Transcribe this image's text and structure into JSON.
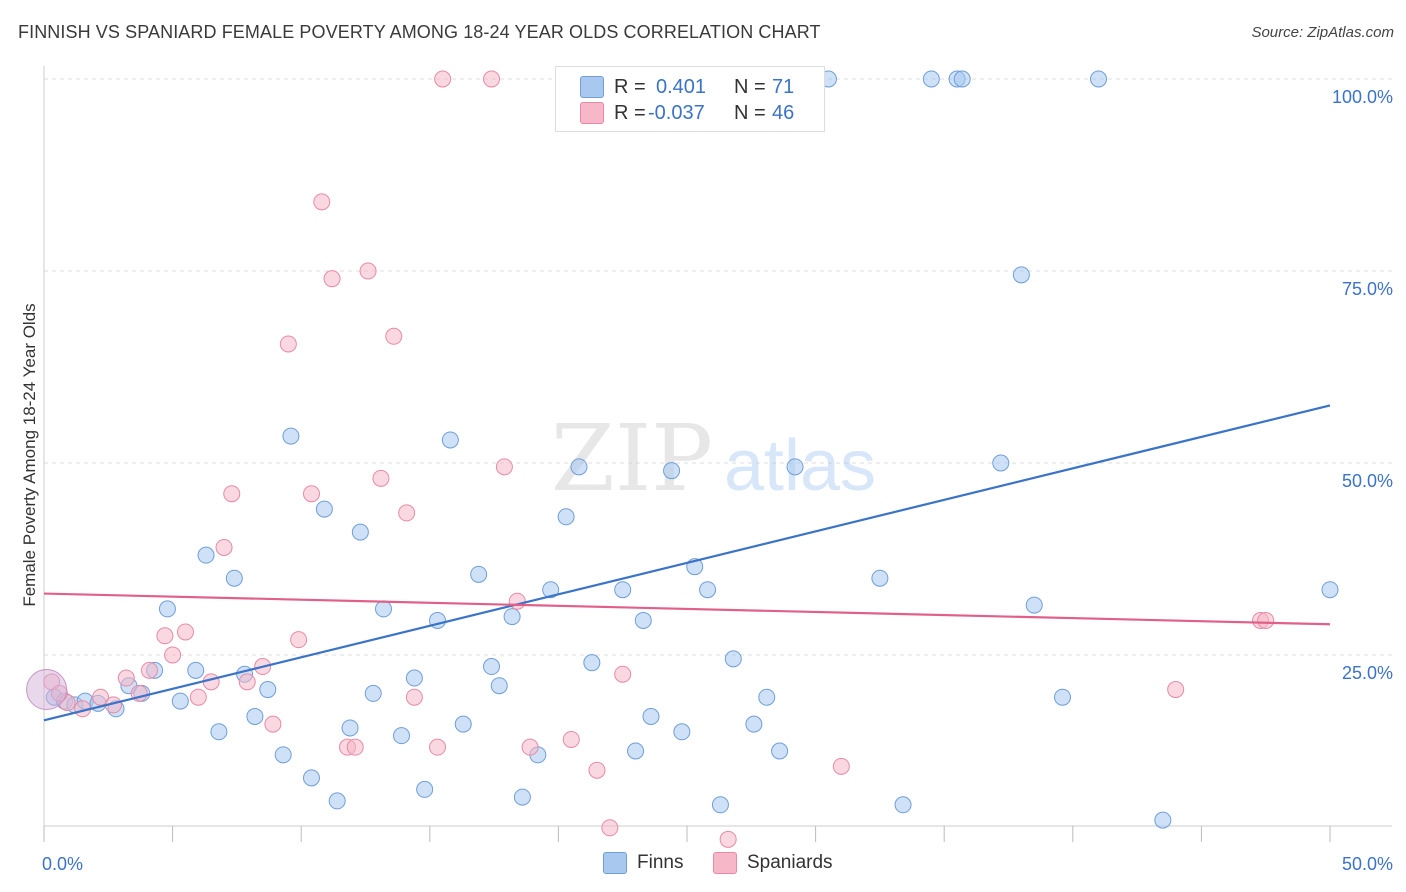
{
  "header": {
    "title": "FINNISH VS SPANIARD FEMALE POVERTY AMONG 18-24 YEAR OLDS CORRELATION CHART",
    "source": "Source: ZipAtlas.com"
  },
  "watermark": {
    "zip": "ZIP",
    "atlas": "atlas"
  },
  "legend_top": {
    "rows": [
      {
        "r_label": "R =",
        "r_value": "0.401",
        "n_label": "N =",
        "n_value": "71",
        "color": "#a8c8f0"
      },
      {
        "r_label": "R =",
        "r_value": "-0.037",
        "n_label": "N =",
        "n_value": "46",
        "color": "#f6b8c8"
      }
    ]
  },
  "legend_bottom": {
    "items": [
      {
        "label": "Finns",
        "color": "#a8c8f0"
      },
      {
        "label": "Spaniards",
        "color": "#f6b8c8"
      }
    ]
  },
  "chart_data": {
    "type": "scatter",
    "title": "FINNISH VS SPANIARD FEMALE POVERTY AMONG 18-24 YEAR OLDS CORRELATION CHART",
    "xlabel": "",
    "ylabel": "Female Poverty Among 18-24 Year Olds",
    "xlim": [
      0,
      50
    ],
    "ylim": [
      0,
      102
    ],
    "x_tick_labels": [
      {
        "value": 0,
        "label": "0.0%"
      },
      {
        "value": 50,
        "label": "50.0%"
      }
    ],
    "y_tick_labels": [
      {
        "value": 25,
        "label": "25.0%"
      },
      {
        "value": 50,
        "label": "50.0%"
      },
      {
        "value": 75,
        "label": "75.0%"
      },
      {
        "value": 100,
        "label": "100.0%"
      }
    ],
    "grid": "horizontal dashed",
    "legend_position": "top-center",
    "series": [
      {
        "name": "Finns",
        "color": "#a8c8f0",
        "edge_color": "#6f9ed8",
        "trend": {
          "x": [
            0,
            50
          ],
          "y": [
            16.5,
            57.5
          ],
          "color": "#3b73c8"
        },
        "points": [
          [
            0.4,
            19.5
          ],
          [
            0.8,
            19.0
          ],
          [
            1.2,
            18.5
          ],
          [
            1.6,
            19.0
          ],
          [
            2.1,
            18.7
          ],
          [
            2.8,
            18.0
          ],
          [
            3.3,
            21.0
          ],
          [
            3.8,
            20.0
          ],
          [
            4.3,
            23.0
          ],
          [
            4.8,
            31.0
          ],
          [
            5.3,
            19.0
          ],
          [
            5.9,
            23.0
          ],
          [
            6.3,
            38.0
          ],
          [
            6.8,
            15.0
          ],
          [
            7.4,
            35.0
          ],
          [
            7.8,
            22.5
          ],
          [
            8.2,
            17.0
          ],
          [
            8.7,
            20.5
          ],
          [
            9.3,
            12.0
          ],
          [
            9.6,
            53.5
          ],
          [
            10.4,
            9.0
          ],
          [
            10.9,
            44.0
          ],
          [
            11.4,
            6.0
          ],
          [
            11.9,
            15.5
          ],
          [
            12.3,
            41.0
          ],
          [
            12.8,
            20.0
          ],
          [
            13.2,
            31.0
          ],
          [
            13.9,
            14.5
          ],
          [
            14.4,
            22.0
          ],
          [
            14.8,
            7.5
          ],
          [
            15.3,
            29.5
          ],
          [
            15.8,
            53.0
          ],
          [
            16.3,
            16.0
          ],
          [
            16.9,
            35.5
          ],
          [
            17.4,
            23.5
          ],
          [
            17.7,
            21.0
          ],
          [
            18.2,
            30.0
          ],
          [
            18.6,
            6.5
          ],
          [
            19.2,
            12.0
          ],
          [
            19.7,
            33.5
          ],
          [
            20.3,
            43.0
          ],
          [
            20.8,
            49.5
          ],
          [
            21.3,
            24.0
          ],
          [
            22.5,
            33.5
          ],
          [
            22.8,
            100.0
          ],
          [
            23.0,
            12.5
          ],
          [
            23.3,
            29.5
          ],
          [
            23.6,
            17.0
          ],
          [
            24.4,
            49.0
          ],
          [
            24.8,
            15.0
          ],
          [
            25.3,
            36.5
          ],
          [
            25.8,
            33.5
          ],
          [
            26.3,
            5.5
          ],
          [
            26.8,
            24.5
          ],
          [
            27.6,
            16.0
          ],
          [
            28.1,
            19.5
          ],
          [
            28.6,
            12.5
          ],
          [
            29.2,
            49.5
          ],
          [
            30.5,
            100.0
          ],
          [
            32.5,
            35.0
          ],
          [
            33.4,
            5.5
          ],
          [
            34.5,
            100.0
          ],
          [
            35.5,
            100.0
          ],
          [
            35.7,
            100.0
          ],
          [
            37.2,
            50.0
          ],
          [
            38.0,
            74.5
          ],
          [
            38.5,
            31.5
          ],
          [
            39.6,
            19.5
          ],
          [
            41.0,
            100.0
          ],
          [
            43.5,
            3.5
          ],
          [
            50.0,
            33.5
          ]
        ]
      },
      {
        "name": "Spaniards",
        "color": "#f6b8c8",
        "edge_color": "#e88aa6",
        "trend": {
          "x": [
            0,
            50
          ],
          "y": [
            33.0,
            29.0
          ],
          "color": "#e0608a"
        },
        "points": [
          [
            0.3,
            21.5
          ],
          [
            0.9,
            18.8
          ],
          [
            1.5,
            18.0
          ],
          [
            2.2,
            19.5
          ],
          [
            2.7,
            18.5
          ],
          [
            3.2,
            22.0
          ],
          [
            3.7,
            20.0
          ],
          [
            4.1,
            23.0
          ],
          [
            4.7,
            27.5
          ],
          [
            5.0,
            25.0
          ],
          [
            5.5,
            28.0
          ],
          [
            6.0,
            19.5
          ],
          [
            6.5,
            21.5
          ],
          [
            7.0,
            39.0
          ],
          [
            7.3,
            46.0
          ],
          [
            7.9,
            21.5
          ],
          [
            8.5,
            23.5
          ],
          [
            8.9,
            16.0
          ],
          [
            9.5,
            65.5
          ],
          [
            9.9,
            27.0
          ],
          [
            10.4,
            46.0
          ],
          [
            10.8,
            84.0
          ],
          [
            11.2,
            74.0
          ],
          [
            11.8,
            13.0
          ],
          [
            12.1,
            13.0
          ],
          [
            12.6,
            75.0
          ],
          [
            13.1,
            48.0
          ],
          [
            13.6,
            66.5
          ],
          [
            14.1,
            43.5
          ],
          [
            14.4,
            19.5
          ],
          [
            15.3,
            13.0
          ],
          [
            15.5,
            100.0
          ],
          [
            17.4,
            100.0
          ],
          [
            17.9,
            49.5
          ],
          [
            18.4,
            32.0
          ],
          [
            18.9,
            13.0
          ],
          [
            20.5,
            14.0
          ],
          [
            21.5,
            10.0
          ],
          [
            22.0,
            2.5
          ],
          [
            22.5,
            22.5
          ],
          [
            26.6,
            1.0
          ],
          [
            31.0,
            10.5
          ],
          [
            44.0,
            20.5
          ],
          [
            47.3,
            29.5
          ],
          [
            47.5,
            29.5
          ],
          [
            0.6,
            20.0
          ]
        ]
      }
    ]
  }
}
